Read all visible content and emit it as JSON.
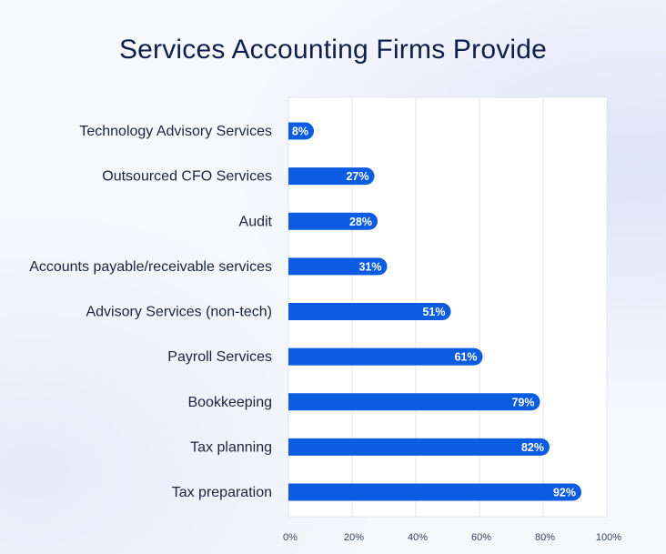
{
  "title": "Services Accounting Firms Provide",
  "colors": {
    "bar": "#0b5ce0",
    "plot_bg": "#ffffff",
    "grid": "#e3e5ec",
    "text": "#1c2340",
    "label_text": "#ffffff"
  },
  "chart_data": {
    "type": "bar",
    "orientation": "horizontal",
    "title": "Services Accounting Firms Provide",
    "categories": [
      "Technology Advisory Services",
      "Outsourced CFO Services",
      "Audit",
      "Accounts payable/receivable services",
      "Advisory Services (non-tech)",
      "Payroll Services",
      "Bookkeeping",
      "Tax planning",
      "Tax preparation"
    ],
    "values": [
      8,
      27,
      28,
      31,
      51,
      61,
      79,
      82,
      92
    ],
    "data_labels": [
      "8%",
      "27%",
      "28%",
      "31%",
      "51%",
      "61%",
      "79%",
      "82%",
      "92%"
    ],
    "xlim": [
      0,
      100
    ],
    "xticks": [
      0,
      20,
      40,
      60,
      80,
      100
    ],
    "xtick_labels": [
      "0%",
      "20%",
      "40%",
      "60%",
      "80%",
      "100%"
    ],
    "grid": true,
    "legend": "none"
  }
}
